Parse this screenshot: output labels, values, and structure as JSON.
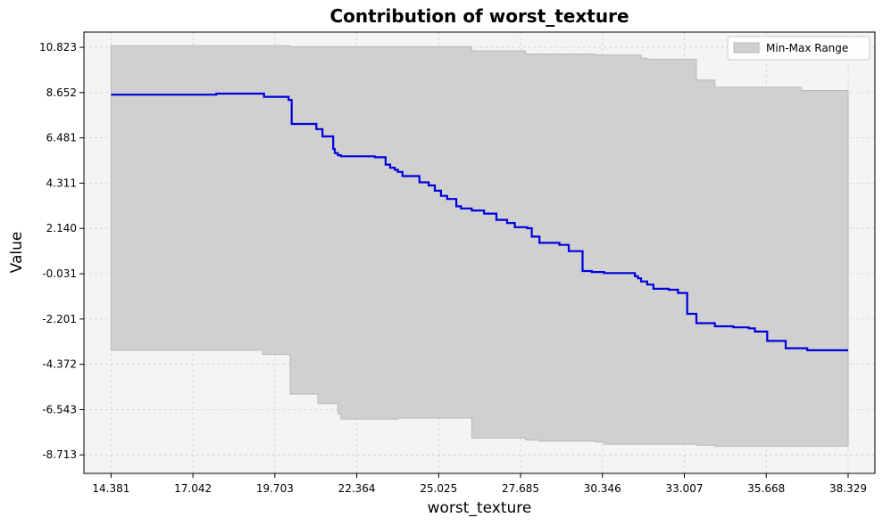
{
  "chart_data": {
    "type": "line",
    "title": "Contribution of worst_texture",
    "xlabel": "worst_texture",
    "ylabel": "Value",
    "xlim": [
      13.5,
      39.2
    ],
    "ylim": [
      -9.6,
      11.55
    ],
    "x_ticks": [
      14.381,
      17.042,
      19.703,
      22.364,
      25.025,
      27.685,
      30.346,
      33.007,
      35.668,
      38.329
    ],
    "x_tick_labels": [
      "14.381",
      "17.042",
      "19.703",
      "22.364",
      "25.025",
      "27.685",
      "30.346",
      "33.007",
      "35.668",
      "38.329"
    ],
    "y_ticks": [
      10.823,
      8.652,
      6.481,
      4.311,
      2.14,
      -0.031,
      -2.201,
      -4.372,
      -6.543,
      -8.713
    ],
    "y_tick_labels": [
      "10.823",
      "8.652",
      "6.481",
      "4.311",
      "2.140",
      "-0.031",
      "-2.201",
      "-4.372",
      "-6.543",
      "-8.713"
    ],
    "grid": true,
    "legend": {
      "placement": "top-right",
      "entries": [
        "Min-Max Range"
      ]
    },
    "colors": {
      "line": "#0000dd",
      "band": "#d0d0d0",
      "band_edge": "#b8b8b8",
      "plot_bg": "#f4f4f4",
      "grid": "#c8c8c8"
    },
    "series": [
      {
        "style": "step-post",
        "x": [
          14.381,
          17.8,
          19.35,
          20.15,
          20.25,
          21.05,
          21.25,
          21.6,
          21.65,
          21.75,
          21.85,
          22.3,
          22.95,
          23.3,
          23.45,
          23.6,
          23.7,
          23.85,
          24.4,
          24.7,
          24.9,
          25.1,
          25.3,
          25.6,
          25.75,
          26.1,
          26.5,
          26.9,
          27.25,
          27.5,
          27.9,
          28.05,
          28.3,
          28.95,
          29.15,
          29.25,
          29.7,
          30.0,
          30.3,
          30.4,
          31.4,
          31.5,
          31.6,
          31.8,
          32.0,
          32.5,
          32.8,
          33.1,
          33.4,
          34.0,
          34.6,
          35.1,
          35.3,
          35.7,
          36.3,
          37.0,
          37.2,
          38.329
        ],
        "y": [
          8.55,
          8.6,
          8.45,
          8.3,
          7.15,
          6.9,
          6.55,
          5.95,
          5.75,
          5.65,
          5.6,
          5.6,
          5.55,
          5.2,
          5.05,
          4.95,
          4.85,
          4.65,
          4.35,
          4.2,
          3.95,
          3.7,
          3.55,
          3.2,
          3.1,
          3.0,
          2.85,
          2.55,
          2.4,
          2.2,
          2.15,
          1.75,
          1.45,
          1.35,
          1.35,
          1.05,
          0.1,
          0.05,
          0.05,
          0.0,
          -0.15,
          -0.25,
          -0.4,
          -0.55,
          -0.75,
          -0.8,
          -0.95,
          -1.95,
          -2.4,
          -2.55,
          -2.6,
          -2.65,
          -2.8,
          -3.25,
          -3.6,
          -3.7,
          -3.7,
          -3.7
        ]
      }
    ],
    "band": {
      "style": "step-post",
      "x": [
        14.381,
        19.3,
        20.2,
        21.1,
        21.75,
        21.85,
        22.7,
        23.7,
        24.1,
        26.1,
        27.85,
        28.3,
        30.1,
        30.4,
        31.6,
        31.8,
        33.0,
        33.4,
        34.0,
        34.4,
        36.8,
        38.329
      ],
      "y_min": [
        -3.7,
        -3.9,
        -5.8,
        -6.25,
        -6.75,
        -7.0,
        -7.0,
        -6.95,
        -6.95,
        -7.9,
        -8.0,
        -8.05,
        -8.1,
        -8.2,
        -8.2,
        -8.2,
        -8.2,
        -8.25,
        -8.3,
        -8.3,
        -8.3,
        -8.3
      ],
      "y_max": [
        10.9,
        10.9,
        10.85,
        10.85,
        10.85,
        10.85,
        10.85,
        10.85,
        10.85,
        10.65,
        10.5,
        10.5,
        10.45,
        10.45,
        10.3,
        10.25,
        10.25,
        9.25,
        8.9,
        8.9,
        8.75,
        8.75
      ]
    }
  }
}
